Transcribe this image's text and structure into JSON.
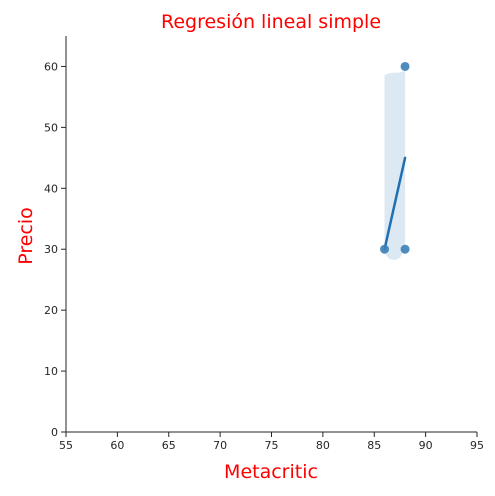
{
  "chart_data": {
    "type": "scatter",
    "title": "Regresión lineal simple",
    "xlabel": "Metacritic",
    "ylabel": "Precio",
    "xlim": [
      55,
      95
    ],
    "ylim": [
      0,
      65
    ],
    "xticks": [
      55,
      60,
      65,
      70,
      75,
      80,
      85,
      90,
      95
    ],
    "yticks": [
      0,
      10,
      20,
      30,
      40,
      50,
      60
    ],
    "grid": false,
    "legend": "none",
    "points": [
      {
        "x": 86,
        "y": 30
      },
      {
        "x": 88,
        "y": 30
      },
      {
        "x": 88,
        "y": 60
      }
    ],
    "regression_line": {
      "x": [
        86,
        88
      ],
      "y": [
        30,
        45
      ]
    },
    "confidence_band": {
      "x": [
        86,
        86.25,
        86.5,
        87,
        87.5,
        88
      ],
      "lower": [
        29.5,
        28.8,
        28.4,
        28.2,
        28.6,
        30
      ],
      "upper": [
        58.5,
        58.8,
        58.9,
        59.0,
        59.0,
        59.3
      ]
    },
    "colors": {
      "points": "#3b7fb7",
      "line": "#1f6fb2",
      "band": "#dce8f2",
      "title": "#ff0000",
      "labels": "#ff0000"
    }
  }
}
